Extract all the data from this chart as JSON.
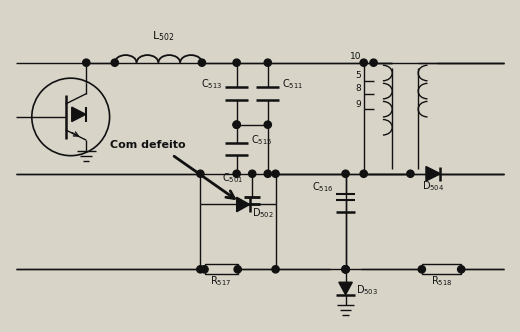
{
  "bg_color": "#d8d4c8",
  "line_color": "#111111",
  "fig_width": 5.2,
  "fig_height": 3.32,
  "dpi": 100
}
